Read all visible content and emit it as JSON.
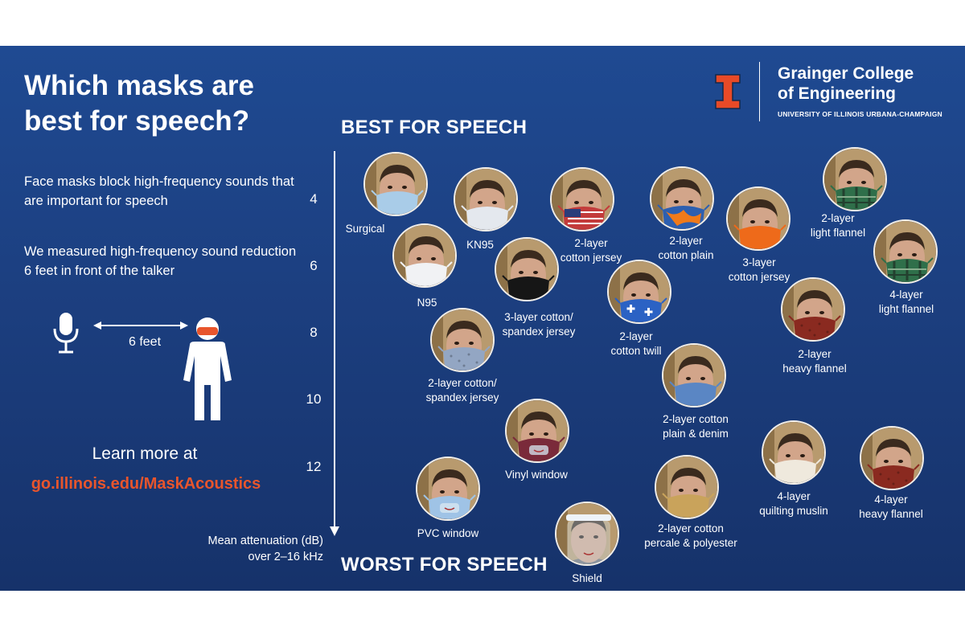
{
  "title": "Which masks are best for speech?",
  "intro": [
    "Face masks block high-frequency sounds that are important for speech",
    "We measured high-frequency sound reduction 6 feet in front of the talker"
  ],
  "diagram": {
    "distance_label": "6 feet",
    "icons": [
      "microphone-icon",
      "person-icon"
    ]
  },
  "learn_more": {
    "text": "Learn more at",
    "url": "go.illinois.edu/MaskAcoustics"
  },
  "scale": {
    "best": "BEST FOR SPEECH",
    "worst": "WORST FOR SPEECH",
    "ticks": [
      "4",
      "6",
      "8",
      "10",
      "12"
    ],
    "label_line1": "Mean attenuation (dB)",
    "label_line2": "over 2–16 kHz"
  },
  "logo": {
    "name_line1": "Grainger College",
    "name_line2": "of Engineering",
    "sub": "UNIVERSITY OF ILLINOIS URBANA-CHAMPAIGN",
    "mark": "I",
    "colors": {
      "orange": "#e84a27",
      "blue": "#13294b"
    }
  },
  "colors": {
    "accent_orange": "#e8552c",
    "background": "#1c3f80",
    "text": "#ffffff"
  },
  "masks": [
    {
      "label": [
        "Surgical"
      ],
      "color": "#a9cce8",
      "pattern": "solid"
    },
    {
      "label": [
        "KN95"
      ],
      "color": "#e4e8ee",
      "pattern": "solid"
    },
    {
      "label": [
        "2-layer",
        "cotton jersey"
      ],
      "color": "#c33b3b",
      "pattern": "flag"
    },
    {
      "label": [
        "2-layer",
        "cotton plain"
      ],
      "color": "#2d5fb0",
      "pattern": "orange-blue"
    },
    {
      "label": [
        "3-layer",
        "cotton jersey"
      ],
      "color": "#ee6a1a",
      "pattern": "solid"
    },
    {
      "label": [
        "2-layer",
        "light flannel"
      ],
      "color": "#2f6f4a",
      "pattern": "plaid"
    },
    {
      "label": [
        "4-layer",
        "light flannel"
      ],
      "color": "#2f6f4a",
      "pattern": "plaid"
    },
    {
      "label": [
        "N95"
      ],
      "color": "#f1f2f4",
      "pattern": "solid"
    },
    {
      "label": [
        "3-layer cotton/",
        "spandex jersey"
      ],
      "color": "#161616",
      "pattern": "solid"
    },
    {
      "label": [
        "2-layer",
        "cotton twill"
      ],
      "color": "#2b62c4",
      "pattern": "cross"
    },
    {
      "label": [
        "2-layer",
        "heavy flannel"
      ],
      "color": "#8a2a20",
      "pattern": "speckle"
    },
    {
      "label": [
        "2-layer cotton/",
        "spandex jersey"
      ],
      "color": "#93a6c3",
      "pattern": "speckle"
    },
    {
      "label": [
        "2-layer cotton",
        "plain & denim"
      ],
      "color": "#5a86c4",
      "pattern": "solid"
    },
    {
      "label": [
        "Vinyl window"
      ],
      "color": "#7a2a3a",
      "pattern": "window"
    },
    {
      "label": [
        "4-layer",
        "quilting muslin"
      ],
      "color": "#efe9dd",
      "pattern": "solid"
    },
    {
      "label": [
        "4-layer",
        "heavy flannel"
      ],
      "color": "#8a2a20",
      "pattern": "speckle"
    },
    {
      "label": [
        "PVC window"
      ],
      "color": "#9fc3e6",
      "pattern": "window"
    },
    {
      "label": [
        "2-layer cotton",
        "percale & polyester"
      ],
      "color": "#c9a35b",
      "pattern": "solid"
    },
    {
      "label": [
        "Shield"
      ],
      "color": "#cfe6f3",
      "pattern": "shield"
    }
  ]
}
